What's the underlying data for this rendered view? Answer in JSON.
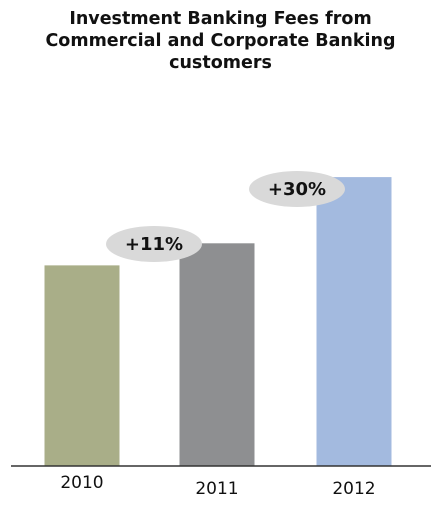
{
  "chart_data": {
    "type": "bar",
    "title": [
      "Investment Banking Fees from",
      "Commercial and Corporate Banking",
      "customers"
    ],
    "categories": [
      "2010",
      "2011",
      "2012"
    ],
    "values": [
      100,
      111,
      144
    ],
    "ylim": [
      0,
      160
    ],
    "grid": false,
    "legend": "none",
    "colors": [
      "#a9ae88",
      "#8e8f91",
      "#a3badf"
    ],
    "annotations": [
      {
        "text": "+11%",
        "between": [
          "2010",
          "2011"
        ]
      },
      {
        "text": "+30%",
        "between": [
          "2011",
          "2012"
        ]
      }
    ],
    "annotation_color": "#d9d9d9",
    "axis_color": "#333333"
  }
}
